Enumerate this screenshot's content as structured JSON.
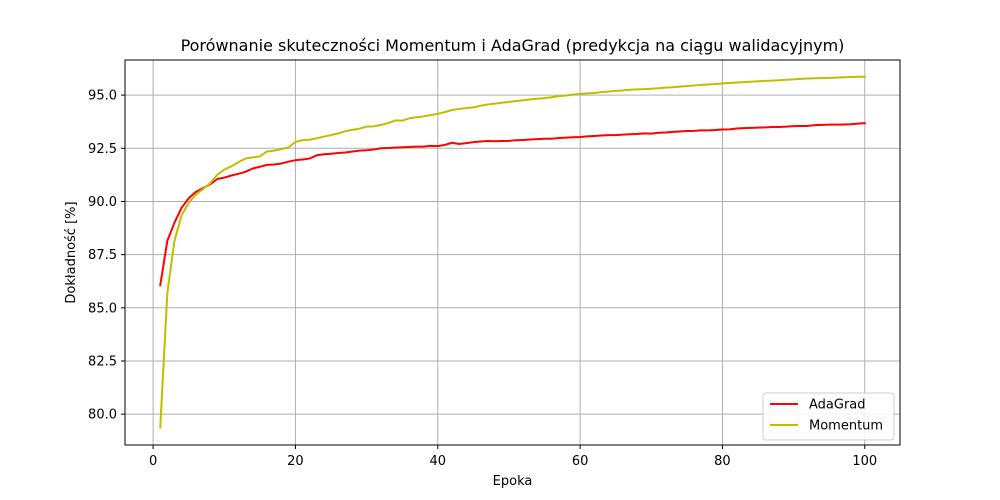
{
  "chart_data": {
    "type": "line",
    "title": "Porównanie skuteczności Momentum i AdaGrad (predykcja na ciągu walidacyjnym)",
    "xlabel": "Epoka",
    "ylabel": "Dokładność [%]",
    "xlim": [
      -3.95,
      104.95
    ],
    "ylim": [
      78.55,
      96.65
    ],
    "grid": true,
    "legend_position": "lower right",
    "xticks": [
      0,
      20,
      40,
      60,
      80,
      100
    ],
    "xtick_labels": [
      "0",
      "20",
      "40",
      "60",
      "80",
      "100"
    ],
    "yticks": [
      80.0,
      82.5,
      85.0,
      87.5,
      90.0,
      92.5,
      95.0
    ],
    "ytick_labels": [
      "80.0",
      "82.5",
      "85.0",
      "87.5",
      "90.0",
      "92.5",
      "95.0"
    ],
    "x": [
      1,
      2,
      3,
      4,
      5,
      6,
      7,
      8,
      9,
      10,
      11,
      12,
      13,
      14,
      15,
      16,
      17,
      18,
      19,
      20,
      21,
      22,
      23,
      24,
      25,
      26,
      27,
      28,
      29,
      30,
      31,
      32,
      33,
      34,
      35,
      36,
      37,
      38,
      39,
      40,
      41,
      42,
      43,
      44,
      45,
      46,
      47,
      48,
      49,
      50,
      51,
      52,
      53,
      54,
      55,
      56,
      57,
      58,
      59,
      60,
      61,
      62,
      63,
      64,
      65,
      66,
      67,
      68,
      69,
      70,
      71,
      72,
      73,
      74,
      75,
      76,
      77,
      78,
      79,
      80,
      81,
      82,
      83,
      84,
      85,
      86,
      87,
      88,
      89,
      90,
      91,
      92,
      93,
      94,
      95,
      96,
      97,
      98,
      99,
      100
    ],
    "series": [
      {
        "name": "AdaGrad",
        "color": "#ff0000",
        "values": [
          86.06,
          88.15,
          89.0,
          89.7,
          90.15,
          90.45,
          90.62,
          90.8,
          91.05,
          91.12,
          91.22,
          91.3,
          91.4,
          91.55,
          91.63,
          91.72,
          91.74,
          91.78,
          91.87,
          91.94,
          91.97,
          92.02,
          92.17,
          92.22,
          92.24,
          92.28,
          92.3,
          92.35,
          92.39,
          92.41,
          92.44,
          92.5,
          92.51,
          92.53,
          92.55,
          92.56,
          92.58,
          92.58,
          92.61,
          92.6,
          92.66,
          92.76,
          92.7,
          92.74,
          92.79,
          92.82,
          92.84,
          92.83,
          92.84,
          92.85,
          92.88,
          92.89,
          92.91,
          92.93,
          92.95,
          92.95,
          92.98,
          93.0,
          93.02,
          93.03,
          93.06,
          93.08,
          93.1,
          93.12,
          93.12,
          93.14,
          93.16,
          93.17,
          93.2,
          93.19,
          93.23,
          93.24,
          93.27,
          93.29,
          93.31,
          93.32,
          93.34,
          93.34,
          93.36,
          93.38,
          93.39,
          93.43,
          93.45,
          93.46,
          93.47,
          93.48,
          93.5,
          93.5,
          93.52,
          93.54,
          93.55,
          93.55,
          93.59,
          93.6,
          93.61,
          93.61,
          93.62,
          93.63,
          93.66,
          93.68
        ]
      },
      {
        "name": "Momentum",
        "color": "#bfbf00",
        "values": [
          79.37,
          85.7,
          88.15,
          89.35,
          89.93,
          90.32,
          90.58,
          90.85,
          91.25,
          91.5,
          91.65,
          91.85,
          92.02,
          92.07,
          92.12,
          92.35,
          92.39,
          92.46,
          92.54,
          92.8,
          92.88,
          92.9,
          92.97,
          93.05,
          93.12,
          93.2,
          93.3,
          93.37,
          93.42,
          93.52,
          93.53,
          93.6,
          93.68,
          93.81,
          93.8,
          93.91,
          93.96,
          94.0,
          94.06,
          94.12,
          94.2,
          94.3,
          94.35,
          94.39,
          94.42,
          94.5,
          94.56,
          94.6,
          94.64,
          94.68,
          94.72,
          94.76,
          94.8,
          94.83,
          94.86,
          94.9,
          94.95,
          94.98,
          95.02,
          95.06,
          95.08,
          95.1,
          95.14,
          95.17,
          95.2,
          95.22,
          95.25,
          95.27,
          95.28,
          95.3,
          95.32,
          95.35,
          95.37,
          95.4,
          95.43,
          95.45,
          95.48,
          95.5,
          95.52,
          95.55,
          95.57,
          95.59,
          95.61,
          95.63,
          95.65,
          95.67,
          95.68,
          95.7,
          95.72,
          95.74,
          95.76,
          95.78,
          95.79,
          95.8,
          95.81,
          95.82,
          95.84,
          95.85,
          95.86,
          95.86
        ]
      }
    ]
  }
}
